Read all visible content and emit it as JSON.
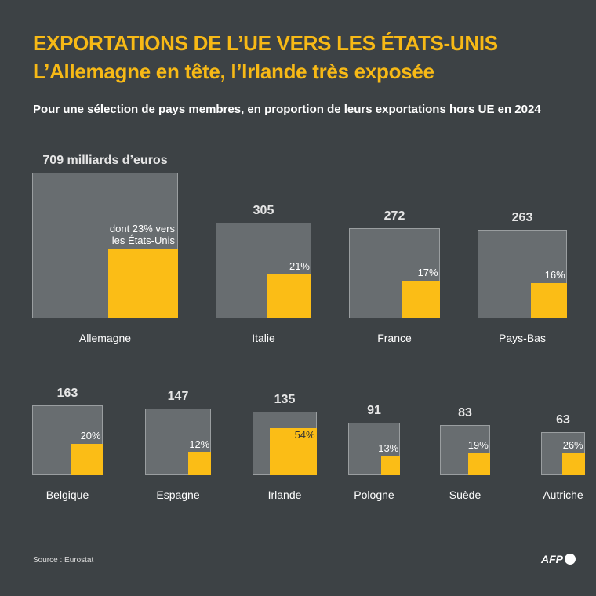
{
  "header": {
    "title": "EXPORTATIONS DE L’UE VERS LES ÉTATS-UNIS",
    "subtitle": "L’Allemagne en tête, l’Irlande très exposée",
    "description": "Pour une sélection de pays membres, en proportion de leurs exportations hors UE en 2024"
  },
  "chart_data": {
    "type": "nested-square",
    "unit": "milliards d’euros",
    "first_value_label": "709 milliards d’euros",
    "first_pct_label": "dont 23% vers les États-Unis",
    "categories": [
      "Allemagne",
      "Italie",
      "France",
      "Pays-Bas",
      "Belgique",
      "Espagne",
      "Irlande",
      "Pologne",
      "Suède",
      "Autriche"
    ],
    "series": [
      {
        "values": [
          709,
          305,
          272,
          263,
          163,
          147,
          135,
          91,
          83,
          63
        ]
      },
      {
        "values": [
          23,
          21,
          17,
          16,
          20,
          12,
          54,
          13,
          19,
          26
        ]
      }
    ],
    "value_labels": [
      "709 milliards d’euros",
      "305",
      "272",
      "263",
      "163",
      "147",
      "135",
      "91",
      "83",
      "63"
    ],
    "pct_labels": [
      "dont 23% vers\nles États-Unis",
      "21%",
      "17%",
      "16%",
      "20%",
      "12%",
      "54%",
      "13%",
      "19%",
      "26%"
    ]
  },
  "colors": {
    "total": "#686d70",
    "us_share": "#fbbd16",
    "title": "#f7b916",
    "background": "#3d4245"
  },
  "footer": {
    "source": "Source : Eurostat",
    "logo": "AFP"
  }
}
